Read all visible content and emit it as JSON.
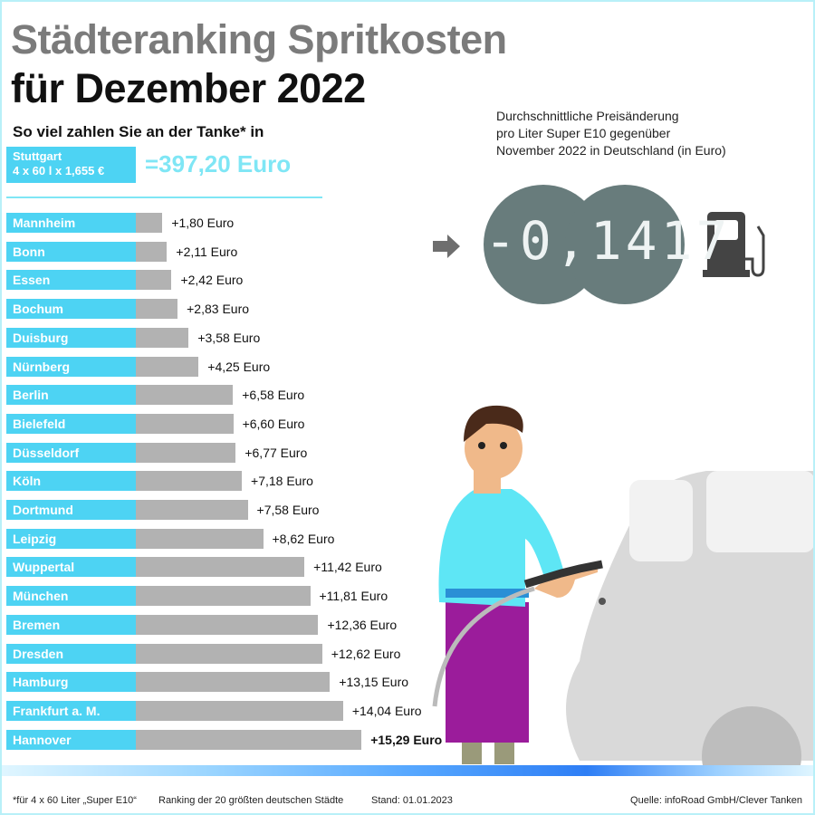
{
  "title_line1": "Städteranking Spritkosten",
  "title_line2": "für Dezember 2022",
  "subtitle": "So viel zahlen Sie an der Tanke* in",
  "reference": {
    "city": "Stuttgart",
    "calc": "4 x 60 l x 1,655 €",
    "total": "=397,20 Euro"
  },
  "price_change": {
    "description": [
      "Durchschnittliche Preisänderung",
      "pro Liter Super E10 gegenüber",
      "November 2022 in Deutschland (in Euro)"
    ],
    "display": "-0,1417",
    "icons": [
      "arrow-right-icon",
      "fuel-pump-icon"
    ]
  },
  "chart_data": {
    "type": "bar",
    "orientation": "horizontal",
    "categories": [
      "Mannheim",
      "Bonn",
      "Essen",
      "Bochum",
      "Duisburg",
      "Nürnberg",
      "Berlin",
      "Bielefeld",
      "Düsseldorf",
      "Köln",
      "Dortmund",
      "Leipzig",
      "Wuppertal",
      "München",
      "Bremen",
      "Dresden",
      "Hamburg",
      "Frankfurt a. M.",
      "Hannover"
    ],
    "values": [
      1.8,
      2.11,
      2.42,
      2.83,
      3.58,
      4.25,
      6.58,
      6.6,
      6.77,
      7.18,
      7.58,
      8.62,
      11.42,
      11.81,
      12.36,
      12.62,
      13.15,
      14.04,
      15.29
    ],
    "labels": [
      "+1,80 Euro",
      "+2,11 Euro",
      "+2,42 Euro",
      "+2,83 Euro",
      "+3,58 Euro",
      "+4,25 Euro",
      "+6,58 Euro",
      "+6,60 Euro",
      "+6,77 Euro",
      "+7,18 Euro",
      "+7,58 Euro",
      "+8,62 Euro",
      "+11,42 Euro",
      "+11,81 Euro",
      "+12,36 Euro",
      "+12,62 Euro",
      "+13,15 Euro",
      "+14,04 Euro",
      "+15,29 Euro"
    ],
    "unit": "Euro",
    "bar_color": "#b2b2b2",
    "label_color": "#4dd3f3"
  },
  "footer": {
    "note": "*für 4 x 60 Liter „Super E10“",
    "ranking": "Ranking der 20 größten deutschen Städte",
    "date": "Stand: 01.01.2023",
    "source": "Quelle: infoRoad GmbH/Clever Tanken"
  }
}
